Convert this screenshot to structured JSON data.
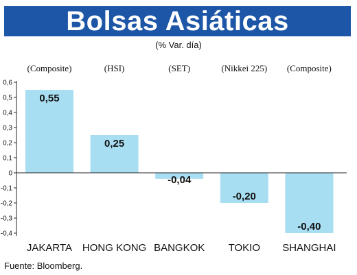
{
  "header": {
    "title": "Bolsas Asiáticas",
    "subtitle": "(% Var. día)",
    "title_bar_color": "#1d56a6"
  },
  "footer": {
    "source": "Fuente: Bloomberg."
  },
  "chart_data": {
    "type": "bar",
    "categories": [
      "JAKARTA",
      "HONG KONG",
      "BANGKOK",
      "TOKIO",
      "SHANGHAI"
    ],
    "index_labels": [
      "(Composite)",
      "(HSI)",
      "(SET)",
      "(Nikkei 225)",
      "(Composite)"
    ],
    "values": [
      0.55,
      0.25,
      -0.04,
      -0.2,
      -0.4
    ],
    "value_labels": [
      "0,55",
      "0,25",
      "-0,04",
      "-0,20",
      "-0,40"
    ],
    "ylim": [
      -0.4,
      0.6
    ],
    "yticks": [
      -0.4,
      -0.3,
      -0.2,
      -0.1,
      0,
      0.1,
      0.2,
      0.3,
      0.4,
      0.5,
      0.6
    ],
    "ytick_labels": [
      "-0,4",
      "-0,3",
      "-0,2",
      "-0,1",
      "0",
      "0,1",
      "0,2",
      "0,3",
      "0,4",
      "0,5",
      "0,6"
    ],
    "bar_color": "#a8def2",
    "grid": false
  }
}
